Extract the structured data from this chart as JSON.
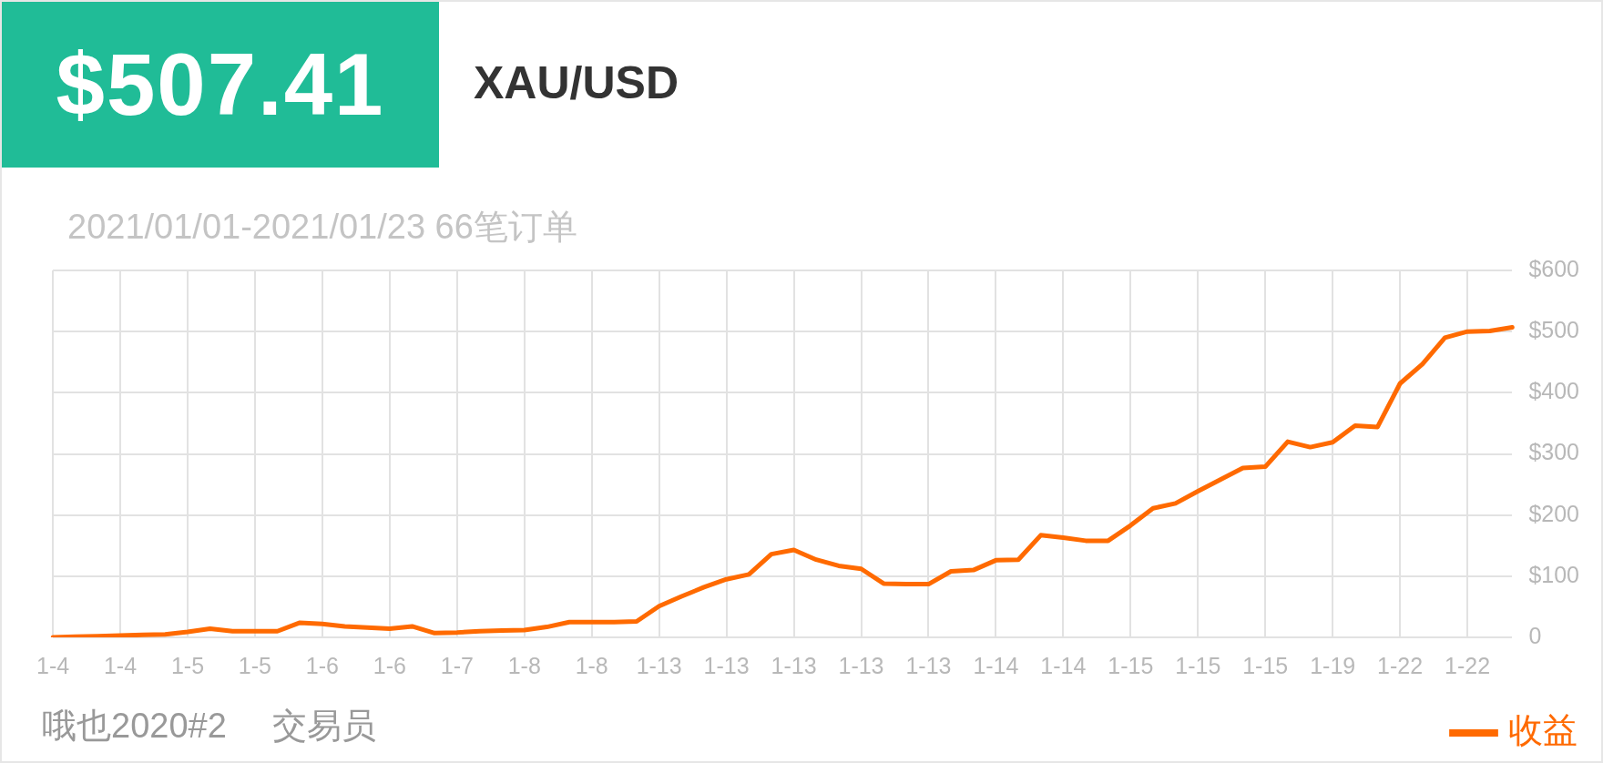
{
  "chart_data": {
    "type": "line",
    "title": "XAU/USD",
    "subtitle": "2021/01/01-2021/01/23 66笔订单",
    "annotations": [
      "$507.41",
      "哦也2020#2",
      "交易员"
    ],
    "categories": [
      "1-4",
      null,
      null,
      "1-4",
      null,
      null,
      "1-5",
      null,
      null,
      "1-5",
      null,
      null,
      "1-6",
      null,
      null,
      "1-6",
      null,
      null,
      "1-7",
      null,
      null,
      "1-8",
      null,
      null,
      "1-8",
      null,
      null,
      "1-13",
      null,
      null,
      "1-13",
      null,
      null,
      "1-13",
      null,
      null,
      "1-13",
      null,
      null,
      "1-13",
      null,
      null,
      "1-14",
      null,
      null,
      "1-14",
      null,
      null,
      "1-15",
      null,
      null,
      "1-15",
      null,
      null,
      "1-15",
      null,
      null,
      "1-19",
      null,
      null,
      "1-22",
      null,
      null,
      "1-22",
      null,
      null
    ],
    "series": [
      {
        "name": "收益",
        "color": "#ff6a00",
        "values": [
          0,
          1,
          2,
          3,
          4,
          5,
          9,
          14,
          10,
          10,
          10,
          24,
          22,
          18,
          16,
          14,
          18,
          7,
          8,
          10,
          11,
          12,
          17,
          25,
          25,
          25,
          26,
          51,
          67,
          82,
          95,
          103,
          136,
          143,
          127,
          117,
          112,
          88,
          87,
          87,
          108,
          110,
          126,
          127,
          167,
          163,
          158,
          158,
          183,
          211,
          219,
          239,
          258,
          277,
          279,
          320,
          311,
          319,
          346,
          344,
          415,
          447,
          490,
          500,
          501,
          507
        ]
      }
    ],
    "ylim": [
      0,
      600
    ],
    "yticks": [
      {
        "value": 0,
        "label": "0"
      },
      {
        "value": 100,
        "label": "$100"
      },
      {
        "value": 200,
        "label": "$200"
      },
      {
        "value": 300,
        "label": "$300"
      },
      {
        "value": 400,
        "label": "$400"
      },
      {
        "value": 500,
        "label": "$500"
      },
      {
        "value": 600,
        "label": "$600"
      }
    ],
    "grid": true,
    "legend": "bottom right",
    "marker": "none",
    "line_style": "solid"
  }
}
